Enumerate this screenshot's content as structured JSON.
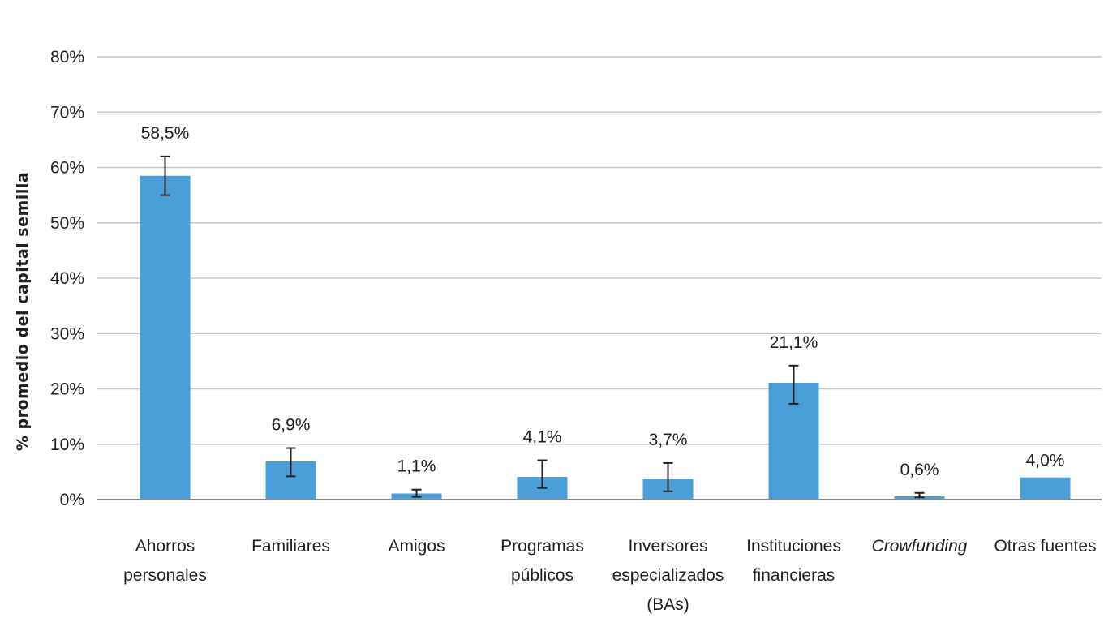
{
  "chart_data": {
    "type": "bar",
    "ylabel": "% promedio del capital semilla",
    "xlabel": "",
    "ylim": [
      0,
      80
    ],
    "yticks": [
      "0%",
      "10%",
      "20%",
      "30%",
      "40%",
      "50%",
      "60%",
      "70%",
      "80%"
    ],
    "grid": true,
    "bar_color": "#4a9fd8",
    "categories": [
      [
        "Ahorros",
        "personales"
      ],
      [
        "Familiares"
      ],
      [
        "Amigos"
      ],
      [
        "Programas",
        "públicos"
      ],
      [
        "Inversores",
        "especializados",
        "(BAs)"
      ],
      [
        "Instituciones",
        "financieras"
      ],
      [
        "Crowfunding"
      ],
      [
        "Otras fuentes"
      ]
    ],
    "italic_categories": [
      6
    ],
    "values": [
      58.5,
      6.9,
      1.1,
      4.1,
      3.7,
      21.1,
      0.6,
      4.0
    ],
    "data_labels": [
      "58,5%",
      "6,9%",
      "1,1%",
      "4,1%",
      "3,7%",
      "21,1%",
      "0,6%",
      "4,0%"
    ],
    "error_bars": [
      [
        55.0,
        62.0
      ],
      [
        4.2,
        9.3
      ],
      [
        0.5,
        1.8
      ],
      [
        2.1,
        7.1
      ],
      [
        1.5,
        6.6
      ],
      [
        17.3,
        24.2
      ],
      [
        0.4,
        1.2
      ],
      null
    ]
  }
}
